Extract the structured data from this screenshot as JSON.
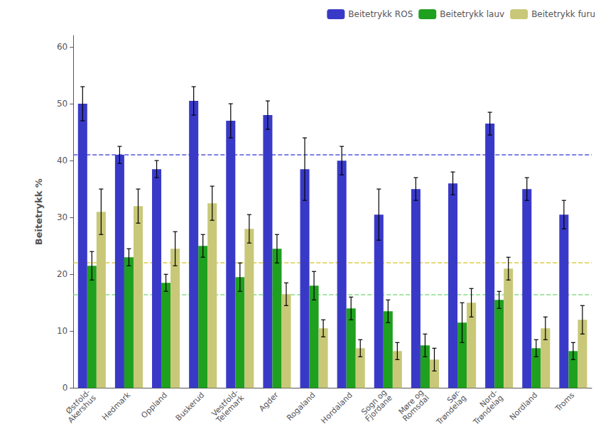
{
  "chart_data": {
    "type": "bar",
    "categories": [
      "Østfold-\nAkershus",
      "Hedmark",
      "Oppland",
      "Buskerud",
      "Vestfold-\nTelemark",
      "Agder",
      "Rogaland",
      "Hordaland",
      "Sogn og\nFjordane",
      "Møre og\nRomsdal",
      "Sør-\nTrøndelag",
      "Nord-\nTrøndelag",
      "Nordland",
      "Troms"
    ],
    "series": [
      {
        "name": "Beitetrykk ROS",
        "color": "#3939c8",
        "values": [
          50.0,
          41.0,
          38.5,
          50.5,
          47.0,
          48.0,
          38.5,
          40.0,
          30.5,
          35.0,
          36.0,
          46.5,
          35.0,
          30.5
        ],
        "errors": [
          3.0,
          1.5,
          1.5,
          2.5,
          3.0,
          2.5,
          5.5,
          2.5,
          4.5,
          2.0,
          2.0,
          2.0,
          2.0,
          2.5
        ]
      },
      {
        "name": "Beitetrykk lauv",
        "color": "#1fa01f",
        "values": [
          21.5,
          23.0,
          18.5,
          25.0,
          19.5,
          24.5,
          18.0,
          14.0,
          13.5,
          7.5,
          11.5,
          15.5,
          7.0,
          6.5
        ],
        "errors": [
          2.5,
          1.5,
          1.5,
          2.0,
          2.5,
          2.5,
          2.5,
          2.0,
          2.0,
          2.0,
          3.5,
          1.5,
          1.5,
          1.5
        ]
      },
      {
        "name": "Beitetrykk furu",
        "color": "#c8c878",
        "values": [
          31.0,
          32.0,
          24.5,
          32.5,
          28.0,
          16.5,
          10.5,
          7.0,
          6.5,
          5.0,
          15.0,
          21.0,
          10.5,
          12.0
        ],
        "errors": [
          4.0,
          3.0,
          3.0,
          3.0,
          2.5,
          2.0,
          1.5,
          1.5,
          1.5,
          2.0,
          2.5,
          2.0,
          2.0,
          2.5
        ]
      }
    ],
    "reference_lines": [
      {
        "value": 41.0,
        "color": "#5555dd",
        "line_style": "dashed"
      },
      {
        "value": 22.0,
        "color": "#ddcc44",
        "line_style": "dashed"
      },
      {
        "value": 16.5,
        "color": "#88dd88",
        "line_style": "dashed"
      }
    ],
    "ylabel": "Beitetrykk %",
    "ylim": [
      0,
      62
    ],
    "yticks": [
      0,
      10,
      20,
      30,
      40,
      50,
      60
    ],
    "legend": "upper right",
    "grid": false
  }
}
